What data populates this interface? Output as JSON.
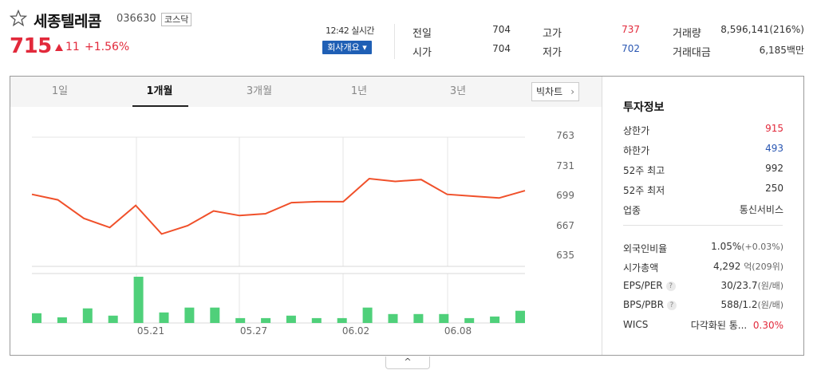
{
  "stock": {
    "name": "세종텔레콤",
    "code": "036630",
    "market": "코스닥",
    "price": "715",
    "change": "11",
    "change_pct": "+1.56%",
    "realtime": "12:42 실시간",
    "company_btn": "회사개요 ▾"
  },
  "quote": {
    "prev_close_label": "전일",
    "prev_close": "704",
    "open_label": "시가",
    "open": "704",
    "high_label": "고가",
    "high": "737",
    "low_label": "저가",
    "low": "702",
    "volume_label": "거래량",
    "volume": "8,596,141(216%)",
    "amount_label": "거래대금",
    "amount": "6,185백만"
  },
  "tabs": [
    "1일",
    "1개월",
    "3개월",
    "1년",
    "3년"
  ],
  "active_tab": "1개월",
  "big_chart": "빅차트",
  "colors": {
    "up": "#e2293b",
    "down": "#2956b2",
    "line": "#f0502a",
    "bar": "#4fd07a"
  },
  "chart_data": {
    "type": "line",
    "title": "",
    "y_ticks": [
      "763",
      "731",
      "699",
      "667",
      "635"
    ],
    "ylim": [
      635,
      763
    ],
    "x_ticks": [
      "05.21",
      "05.27",
      "06.02",
      "06.08"
    ],
    "series": [
      {
        "values": [
          701,
          695,
          675,
          665,
          689,
          658,
          667,
          683,
          678,
          680,
          692,
          693,
          693,
          718,
          715,
          717,
          701,
          699,
          697,
          705
        ]
      }
    ],
    "volume": [
      12,
      7,
      18,
      9,
      57,
      13,
      19,
      19,
      6,
      6,
      9,
      6,
      6,
      19,
      11,
      11,
      11,
      6,
      8,
      15
    ]
  },
  "invest": {
    "title": "투자정보",
    "upper_limit_label": "상한가",
    "upper_limit": "915",
    "lower_limit_label": "하한가",
    "lower_limit": "493",
    "w52_high_label": "52주 최고",
    "w52_high": "992",
    "w52_low_label": "52주 최저",
    "w52_low": "250",
    "industry_label": "업종",
    "industry": "통신서비스",
    "foreign_label": "외국인비율",
    "foreign": "1.05%",
    "foreign_chg": "(+0.03%)",
    "mcap_label": "시가총액",
    "mcap": "4,292",
    "mcap_unit": "억(209위)",
    "eps_label": "EPS/PER",
    "eps": "30/23.7",
    "eps_unit": "(원/배)",
    "bps_label": "BPS/PBR",
    "bps": "588/1.2",
    "bps_unit": "(원/배)",
    "wics_label": "WICS",
    "wics": "다각화된 통...",
    "wics_pct": "0.30%",
    "help": "?"
  },
  "collapse": "^"
}
